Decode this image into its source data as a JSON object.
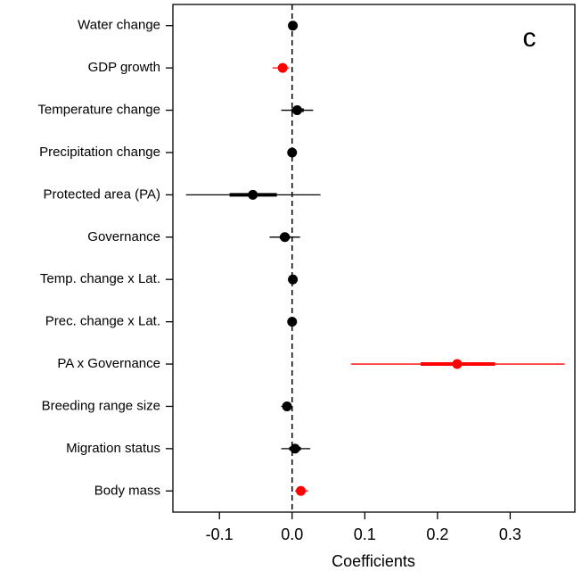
{
  "chart_data": {
    "type": "forest",
    "annotation": "c",
    "x_label": "Coefficients",
    "categories": [
      "Water change",
      "GDP growth",
      "Temperature change",
      "Precipitation change",
      "Protected area (PA)",
      "Governance",
      "Temp. change x Lat.",
      "Prec. change x Lat.",
      "PA x Governance",
      "Breeding range size",
      "Migration status",
      "Body mass"
    ],
    "values": [
      0.001,
      -0.013,
      0.007,
      0.0,
      -0.054,
      -0.01,
      0.001,
      0.0,
      0.227,
      -0.007,
      0.004,
      0.012
    ],
    "ci_low": [
      -0.002,
      -0.027,
      -0.015,
      -0.003,
      -0.146,
      -0.031,
      -0.002,
      -0.002,
      0.081,
      -0.015,
      -0.015,
      0.004
    ],
    "ci_high": [
      0.004,
      -0.004,
      0.029,
      0.003,
      0.039,
      0.011,
      0.004,
      0.002,
      0.375,
      0.0,
      0.025,
      0.022
    ],
    "ci50_low": [
      -0.001,
      -0.018,
      -0.001,
      -0.001,
      -0.086,
      -0.017,
      -0.001,
      -0.001,
      0.177,
      -0.01,
      -0.004,
      0.008
    ],
    "ci50_high": [
      0.003,
      -0.008,
      0.016,
      0.001,
      -0.021,
      -0.003,
      0.003,
      0.001,
      0.279,
      -0.004,
      0.012,
      0.016
    ],
    "colors": [
      "#000000",
      "#ff0000",
      "#000000",
      "#000000",
      "#000000",
      "#000000",
      "#000000",
      "#000000",
      "#ff0000",
      "#000000",
      "#000000",
      "#ff0000"
    ],
    "ref_line": 0,
    "xlim": [
      -0.164,
      0.389
    ],
    "xticks": [
      -0.1,
      {
        "value": 0,
        "label": "0.0"
      },
      0.1,
      0.2,
      0.3
    ]
  }
}
